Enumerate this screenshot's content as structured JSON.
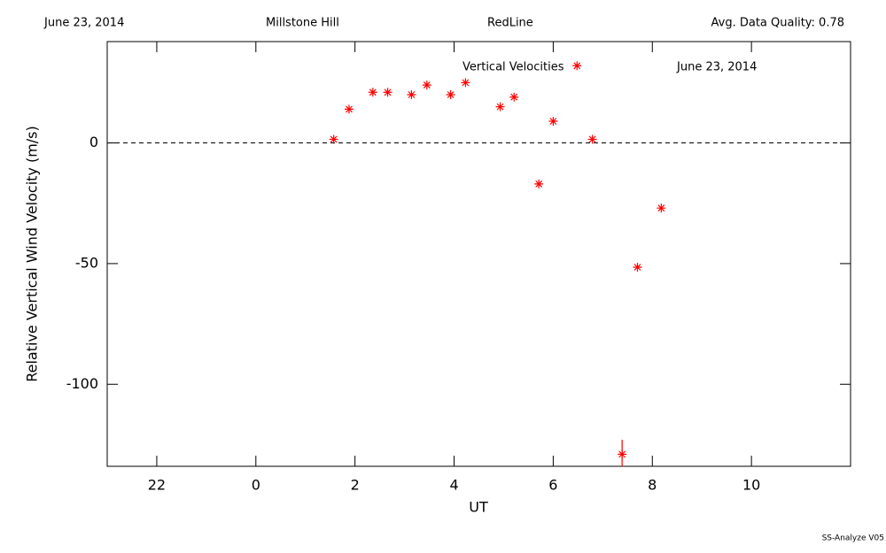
{
  "header": {
    "date": "June 23, 2014",
    "site": "Millstone Hill",
    "filter": "RedLine",
    "quality": "Avg. Data Quality: 0.78"
  },
  "footer": "SS-Analyze V05",
  "chart_data": {
    "type": "scatter",
    "title": "Vertical Velocities",
    "subtitle": "June 23, 2014",
    "x_label": "UT",
    "y_label": "Relative Vertical Wind Velocity (m/s)",
    "x": [
      1.57,
      1.88,
      2.36,
      2.66,
      3.14,
      3.45,
      3.93,
      4.23,
      4.93,
      5.21,
      5.71,
      6.0,
      6.48,
      6.79,
      7.39,
      7.7,
      8.18
    ],
    "values": [
      1.5,
      14,
      21,
      21,
      20,
      24,
      20,
      25,
      15,
      19,
      -17,
      9,
      32,
      1.5,
      -129,
      -51.5,
      -27
    ],
    "errors": [
      null,
      null,
      null,
      null,
      null,
      null,
      null,
      null,
      null,
      null,
      null,
      null,
      null,
      null,
      6,
      null,
      null
    ],
    "color": "#ff0000",
    "reference_line": 0,
    "xlim": [
      -3,
      12
    ],
    "xticks": [
      {
        "value": -2,
        "label": "22"
      },
      0,
      2,
      4,
      6,
      8,
      10
    ],
    "ylim": [
      -134,
      42
    ],
    "yticks": [
      0,
      -50,
      -100
    ]
  }
}
